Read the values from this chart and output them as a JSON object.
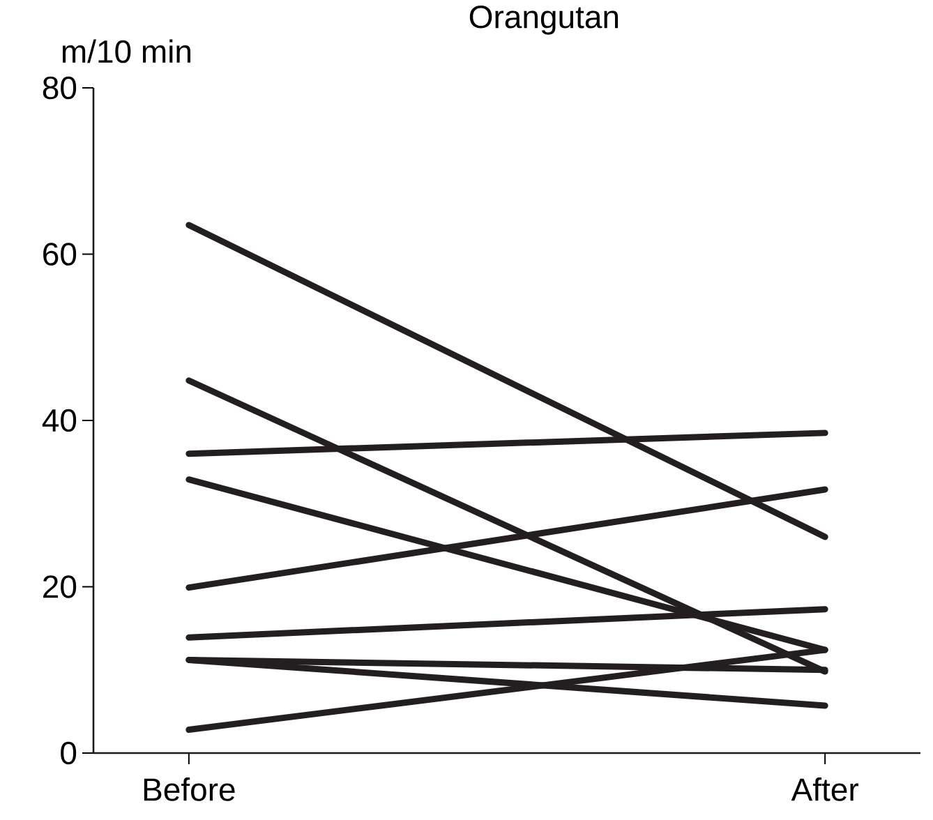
{
  "chart_data": {
    "type": "line",
    "title": "Orangutan",
    "ylabel": "m/10 min",
    "categories": [
      "Before",
      "After"
    ],
    "ylim": [
      0,
      80
    ],
    "yticks": [
      0,
      20,
      40,
      60,
      80
    ],
    "marker": "none",
    "line_style": "solid",
    "series": [
      {
        "color": "#231f20",
        "values": [
          63.5,
          26.0
        ]
      },
      {
        "color": "#231f20",
        "values": [
          44.8,
          9.8
        ]
      },
      {
        "color": "#231f20",
        "values": [
          36.0,
          38.5
        ]
      },
      {
        "color": "#231f20",
        "values": [
          32.9,
          12.4
        ]
      },
      {
        "color": "#231f20",
        "values": [
          19.9,
          31.7
        ]
      },
      {
        "color": "#231f20",
        "values": [
          13.9,
          17.3
        ]
      },
      {
        "color": "#231f20",
        "values": [
          11.2,
          10.0
        ]
      },
      {
        "color": "#231f20",
        "values": [
          11.2,
          5.7
        ]
      },
      {
        "color": "#231f20",
        "values": [
          2.8,
          12.4
        ]
      }
    ]
  }
}
